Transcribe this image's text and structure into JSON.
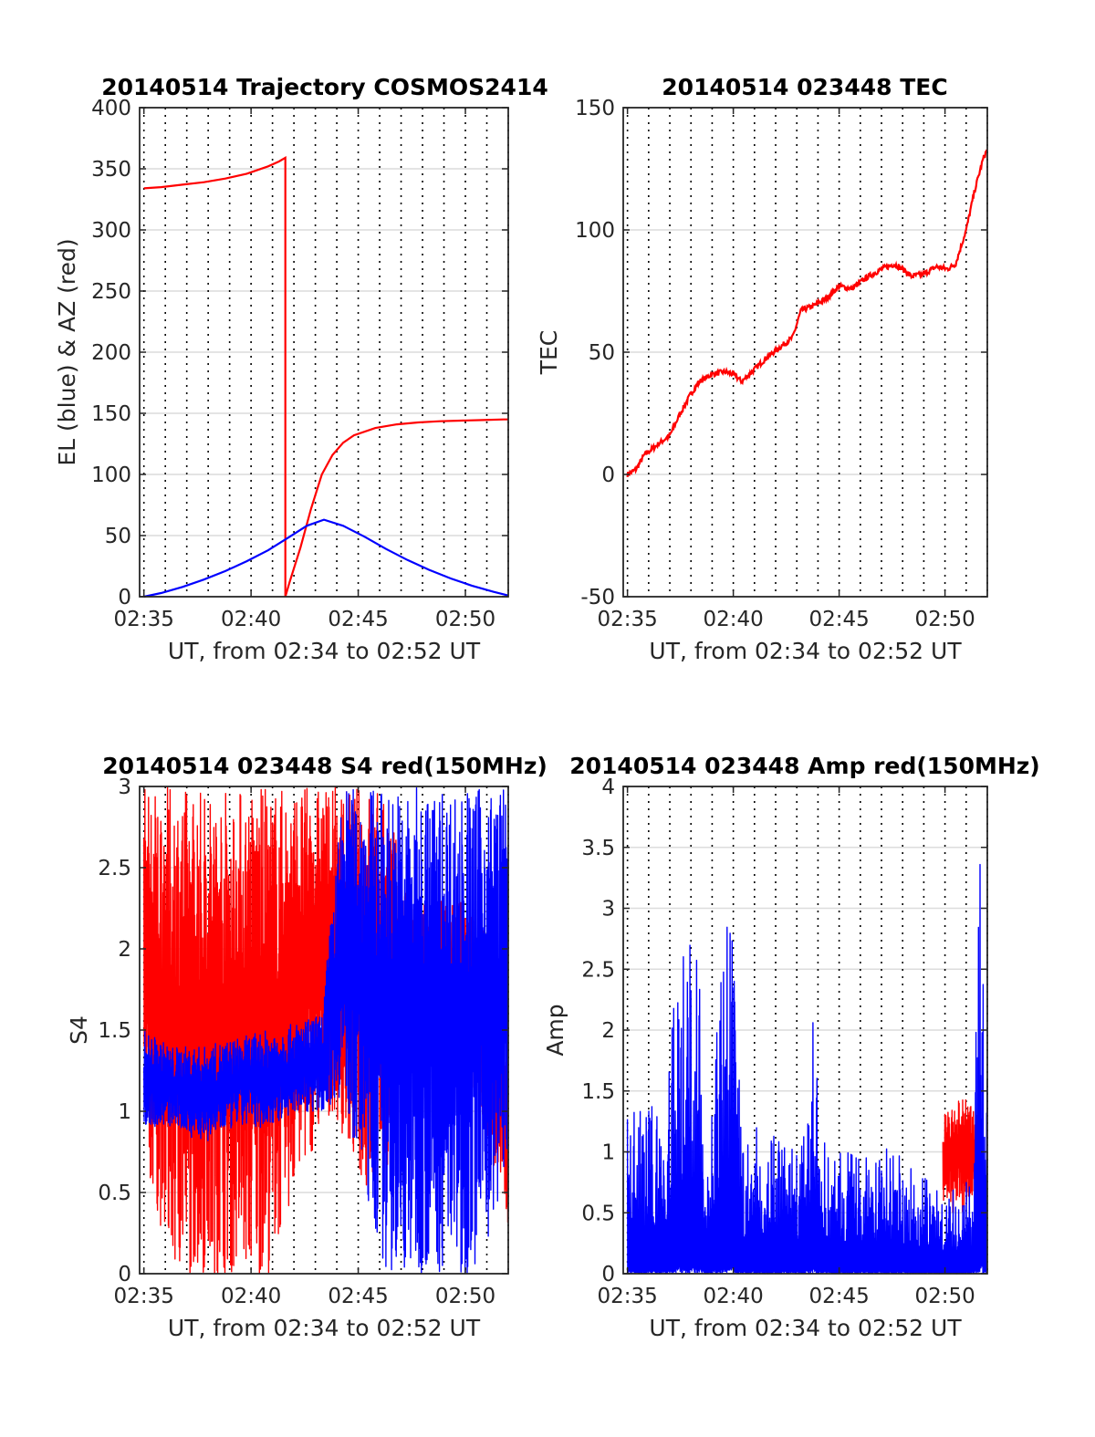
{
  "colors": {
    "red": "#ff0000",
    "blue": "#0000ff",
    "axis": "#262626",
    "grid": "#dcdcdc"
  },
  "chart_data": [
    {
      "id": "trajectory",
      "type": "line",
      "title": "20140514 Trajectory COSMOS2414",
      "xlabel": "UT, from 02:34 to 02:52 UT",
      "ylabel": "EL (blue) & AZ (red)",
      "xlim": [
        "02:34:48",
        "02:52:00"
      ],
      "ylim": [
        0,
        400
      ],
      "xticks": [
        "02:35",
        "02:40",
        "02:45",
        "02:50"
      ],
      "yticks": [
        0,
        50,
        100,
        150,
        200,
        250,
        300,
        350,
        400
      ],
      "grid": "on",
      "series": [
        {
          "color": "red",
          "x_min": [
            0.2,
            1,
            2,
            3,
            4,
            5,
            6,
            6.5,
            6.8,
            6.8,
            7,
            7.5,
            8,
            8.5,
            9,
            9.5,
            10,
            11,
            12,
            13,
            14,
            15,
            16,
            17,
            17.2
          ],
          "y": [
            334,
            335,
            337,
            339,
            342,
            346,
            352,
            356,
            359,
            0,
            12,
            40,
            72,
            100,
            116,
            126,
            132,
            138,
            141,
            142.5,
            143.5,
            144,
            144.5,
            145,
            145
          ]
        },
        {
          "color": "blue",
          "x_min": [
            0.2,
            1,
            2,
            3,
            4,
            5,
            6,
            7,
            7.8,
            8.6,
            9.5,
            10.5,
            11.5,
            12.5,
            13.5,
            14.5,
            15.5,
            16.5,
            17.2
          ],
          "y": [
            0,
            3,
            8,
            14,
            21,
            29,
            38,
            49,
            58,
            63,
            58,
            49,
            39,
            30,
            22,
            15,
            9,
            4,
            1
          ]
        }
      ]
    },
    {
      "id": "tec",
      "type": "line",
      "title": "20140514 023448 TEC",
      "xlabel": "UT, from 02:34 to 02:52 UT",
      "ylabel": "TEC",
      "xlim": [
        "02:34:48",
        "02:52:00"
      ],
      "ylim": [
        -50,
        150
      ],
      "xticks": [
        "02:35",
        "02:40",
        "02:45",
        "02:50"
      ],
      "yticks": [
        -50,
        0,
        50,
        100,
        150
      ],
      "grid": "on",
      "series": [
        {
          "color": "red",
          "x_min": [
            0.2,
            0.6,
            1,
            1.6,
            2.2,
            2.7,
            3.2,
            3.6,
            4.2,
            4.8,
            5.2,
            5.6,
            6.2,
            6.8,
            7.4,
            8.0,
            8.4,
            9,
            9.6,
            10.2,
            10.8,
            11.4,
            12.2,
            12.8,
            13.2,
            13.6,
            14.2,
            14.8,
            15.3,
            15.7,
            16.2,
            16.6,
            17.0,
            17.2
          ],
          "y": [
            0,
            2,
            8,
            12,
            16,
            25,
            33,
            38,
            41,
            42,
            41,
            38,
            43,
            48,
            52,
            56,
            67,
            69,
            72,
            77,
            76,
            80,
            84,
            86,
            84,
            81,
            82,
            85,
            84,
            86,
            100,
            116,
            129,
            133
          ]
        }
      ]
    },
    {
      "id": "s4",
      "type": "line",
      "title": "20140514 023448 S4 red(150MHz)",
      "xlabel": "UT, from 02:34 to 02:52 UT",
      "ylabel": "S4",
      "xlim": [
        "02:34:48",
        "02:52:00"
      ],
      "ylim": [
        0,
        3
      ],
      "xticks": [
        "02:35",
        "02:40",
        "02:45",
        "02:50"
      ],
      "yticks": [
        0,
        0.5,
        1,
        1.5,
        2,
        2.5,
        3
      ],
      "grid": "on",
      "series": [
        {
          "color": "red",
          "x_min": [
            0.2,
            1.5,
            3,
            4.5,
            6,
            7.5,
            9,
            10.5,
            11.5,
            12.5,
            13.5,
            15,
            16.5,
            17.2
          ],
          "y_min": [
            0.7,
            0,
            0,
            0,
            0,
            0.6,
            1.0,
            0.5,
            0.6,
            1.5,
            1.5,
            1.5,
            0.6,
            0.3
          ],
          "y_max": [
            3,
            3,
            3,
            3,
            3,
            3,
            3,
            3,
            3,
            2.3,
            2.3,
            2.3,
            2.1,
            1.5
          ]
        },
        {
          "color": "blue",
          "x_min": [
            0.2,
            1.5,
            3,
            4.5,
            6,
            7.5,
            8.5,
            9.5,
            10.5,
            11.5,
            12.5,
            13.5,
            14.5,
            15.5,
            16.5,
            17.2
          ],
          "y_min": [
            0.9,
            0.9,
            0.8,
            0.9,
            0.9,
            1.0,
            1.0,
            1.1,
            0.5,
            0,
            0,
            0,
            0,
            0,
            0.3,
            0.6
          ],
          "y_max": [
            1.5,
            1.4,
            1.4,
            1.45,
            1.5,
            1.55,
            1.6,
            3,
            3,
            3,
            3,
            3,
            3,
            3,
            3,
            3
          ]
        }
      ]
    },
    {
      "id": "amp",
      "type": "line",
      "title": "20140514 023448 Amp red(150MHz)",
      "xlabel": "UT, from 02:34 to 02:52 UT",
      "ylabel": "Amp",
      "xlim": [
        "02:34:48",
        "02:52:00"
      ],
      "ylim": [
        0,
        4
      ],
      "xticks": [
        "02:35",
        "02:40",
        "02:45",
        "02:50"
      ],
      "yticks": [
        0,
        0.5,
        1,
        1.5,
        2,
        2.5,
        3,
        3.5,
        4
      ],
      "grid": "on",
      "series": [
        {
          "color": "red",
          "x_min": [
            15.1,
            15.5,
            16,
            16.5,
            16.9
          ],
          "y_min": [
            0.6,
            0.5,
            0.5,
            0.6,
            0.6
          ],
          "y_max": [
            1.3,
            1.35,
            1.45,
            1.4,
            1.35
          ]
        },
        {
          "color": "blue",
          "x_min": [
            0.2,
            1,
            2,
            2.6,
            3,
            3.4,
            4,
            4.9,
            5.2,
            5.6,
            6.5,
            7.5,
            8.5,
            8.9,
            9.5,
            10.5,
            11.5,
            12.5,
            13.5,
            14.5,
            15.5,
            16.5,
            16.9,
            17.2
          ],
          "y_min": [
            0,
            0,
            0,
            0,
            0,
            0,
            0,
            0,
            0,
            0,
            0,
            0,
            0,
            0,
            0,
            0,
            0,
            0,
            0,
            0,
            0,
            0,
            0,
            0
          ],
          "y_max": [
            1.4,
            1.4,
            1.45,
            2.8,
            3.0,
            2.9,
            1.3,
            2.9,
            2.7,
            1.2,
            1.2,
            1.15,
            1.1,
            2.2,
            1.1,
            1.0,
            0.95,
            1.1,
            0.9,
            0.8,
            0.7,
            0.8,
            3.75,
            2.0
          ]
        }
      ]
    }
  ]
}
